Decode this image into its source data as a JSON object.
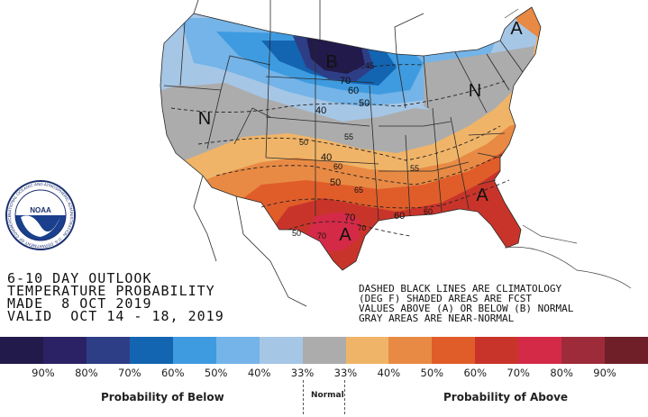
{
  "title_lines": [
    "6-10 DAY OUTLOOK",
    "TEMPERATURE PROBABILITY",
    "MADE  8 OCT 2019",
    "VALID  OCT 14 - 18, 2019"
  ],
  "notes": [
    "DASHED BLACK LINES ARE CLIMATOLOGY",
    "(DEG F) SHADED AREAS ARE FCST",
    "VALUES ABOVE (A) OR BELOW (B) NORMAL",
    "GRAY AREAS ARE NEAR-NORMAL"
  ],
  "logo_text": "NOAA",
  "logo_ring_text": "NATIONAL OCEANIC AND ATMOSPHERIC ADMINISTRATION · U.S. DEPARTMENT OF COMMERCE",
  "map_labels": {
    "below": "B",
    "near_normal_w": "N",
    "near_normal_e": "N",
    "above_ne": "A",
    "above_se": "A",
    "above_tx": "A",
    "c70a": "70",
    "c60a": "60",
    "c50a": "50",
    "c40a": "40",
    "c45": "45",
    "c55": "55",
    "c50b": "50",
    "c40b": "40",
    "c60b": "60",
    "c50c": "50",
    "c65": "65",
    "c55b": "55",
    "c60c": "60",
    "c70b": "70",
    "c70c": "70",
    "c70d": "70",
    "c50d": "50",
    "c60d": "60"
  },
  "legend": {
    "colors": [
      "#221a4a",
      "#2b2265",
      "#2e3e86",
      "#1364b1",
      "#3f9be0",
      "#74b4e8",
      "#a6c6e6",
      "#acacac",
      "#f0b468",
      "#e88a44",
      "#e05d2a",
      "#c9342a",
      "#d42a48",
      "#9e2b3a",
      "#6e1f28"
    ],
    "percents": [
      "90%",
      "80%",
      "70%",
      "60%",
      "50%",
      "40%",
      "33%",
      "33%",
      "40%",
      "50%",
      "60%",
      "70%",
      "80%",
      "90%"
    ],
    "below_caption": "Probability of Below",
    "normal_caption": "Normal",
    "above_caption": "Probability of Above"
  }
}
